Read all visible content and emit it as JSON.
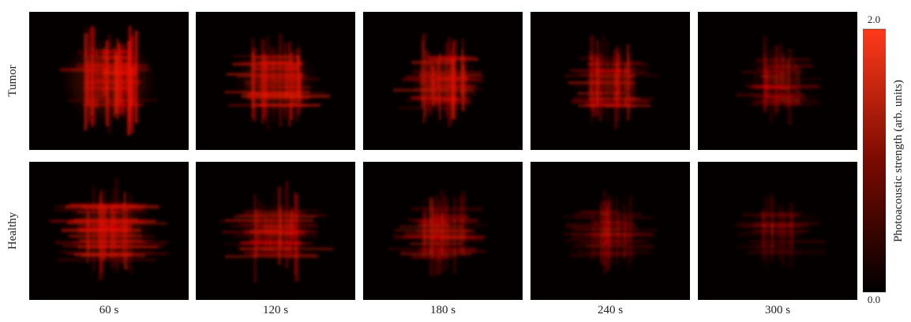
{
  "rows": [
    "Tumor",
    "Healthy"
  ],
  "columns": [
    "60 s",
    "120 s",
    "180 s",
    "240 s",
    "300 s"
  ],
  "colorbar": {
    "label": "Photoacoustic strength (arb. units)",
    "ticks": [
      {
        "value": 0,
        "label": "0.0"
      },
      {
        "value": 2,
        "label": "2.0"
      }
    ]
  }
}
